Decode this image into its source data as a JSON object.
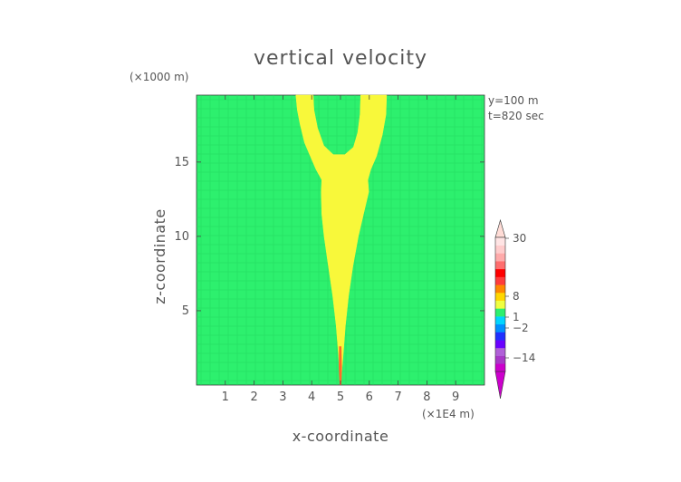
{
  "chart_data": {
    "type": "heatmap",
    "title": "vertical velocity",
    "xlabel": "x-coordinate",
    "ylabel": "z-coordinate",
    "x_unit": "(×1E4 m)",
    "y_unit": "(×1000 m)",
    "xlim": [
      0,
      10
    ],
    "ylim": [
      0,
      19.5
    ],
    "x_ticks": [
      1,
      2,
      3,
      4,
      5,
      6,
      7,
      8,
      9
    ],
    "y_ticks": [
      5,
      10,
      15
    ],
    "annotations": [
      "y=100 m",
      "t=820 sec"
    ],
    "background_value_color": "#2df06e",
    "colorbar": {
      "labels": [
        "30",
        "8",
        "1",
        "−2",
        "−14"
      ],
      "label_values": [
        30,
        8,
        1,
        -2,
        -14
      ],
      "colors_bottom_to_top": [
        "#cc00cc",
        "#a838c8",
        "#b060d8",
        "#6a00ff",
        "#1f30ff",
        "#0090ff",
        "#00d5ff",
        "#2df06e",
        "#f0ff40",
        "#ffd700",
        "#ff8800",
        "#ff3c3c",
        "#ff0000",
        "#ff6e6e",
        "#ffaaaa",
        "#ffcccc",
        "#ffe4e4"
      ],
      "top_color": "#ffdcd6",
      "bottom_color": "#cc00cc"
    },
    "plume": {
      "color": "#f8f83a",
      "core_color": "#ff6a2a",
      "center_x": 5.0,
      "outline": [
        [
          4.98,
          0.3
        ],
        [
          4.93,
          2.0
        ],
        [
          4.85,
          4.0
        ],
        [
          4.73,
          6.0
        ],
        [
          4.58,
          8.0
        ],
        [
          4.43,
          10.0
        ],
        [
          4.35,
          11.5
        ],
        [
          4.33,
          13.0
        ],
        [
          4.35,
          13.8
        ],
        [
          4.15,
          14.5
        ],
        [
          3.95,
          15.4
        ],
        [
          3.75,
          16.3
        ],
        [
          3.6,
          17.5
        ],
        [
          3.5,
          18.5
        ],
        [
          3.45,
          19.5
        ],
        [
          4.05,
          19.5
        ],
        [
          4.08,
          18.5
        ],
        [
          4.2,
          17.3
        ],
        [
          4.42,
          16.1
        ],
        [
          4.75,
          15.5
        ],
        [
          5.15,
          15.5
        ],
        [
          5.45,
          16.0
        ],
        [
          5.6,
          17.0
        ],
        [
          5.68,
          18.2
        ],
        [
          5.7,
          19.5
        ],
        [
          6.6,
          19.5
        ],
        [
          6.58,
          18.2
        ],
        [
          6.45,
          16.8
        ],
        [
          6.25,
          15.4
        ],
        [
          6.05,
          14.5
        ],
        [
          5.95,
          13.8
        ],
        [
          5.98,
          13.0
        ],
        [
          5.8,
          11.5
        ],
        [
          5.62,
          10.0
        ],
        [
          5.43,
          8.0
        ],
        [
          5.28,
          6.0
        ],
        [
          5.17,
          4.0
        ],
        [
          5.09,
          2.0
        ],
        [
          5.02,
          0.3
        ]
      ],
      "core_outline": [
        [
          4.97,
          0.0
        ],
        [
          4.94,
          1.2
        ],
        [
          4.95,
          2.6
        ],
        [
          5.03,
          2.6
        ],
        [
          5.05,
          1.2
        ],
        [
          5.03,
          0.0
        ]
      ]
    }
  }
}
